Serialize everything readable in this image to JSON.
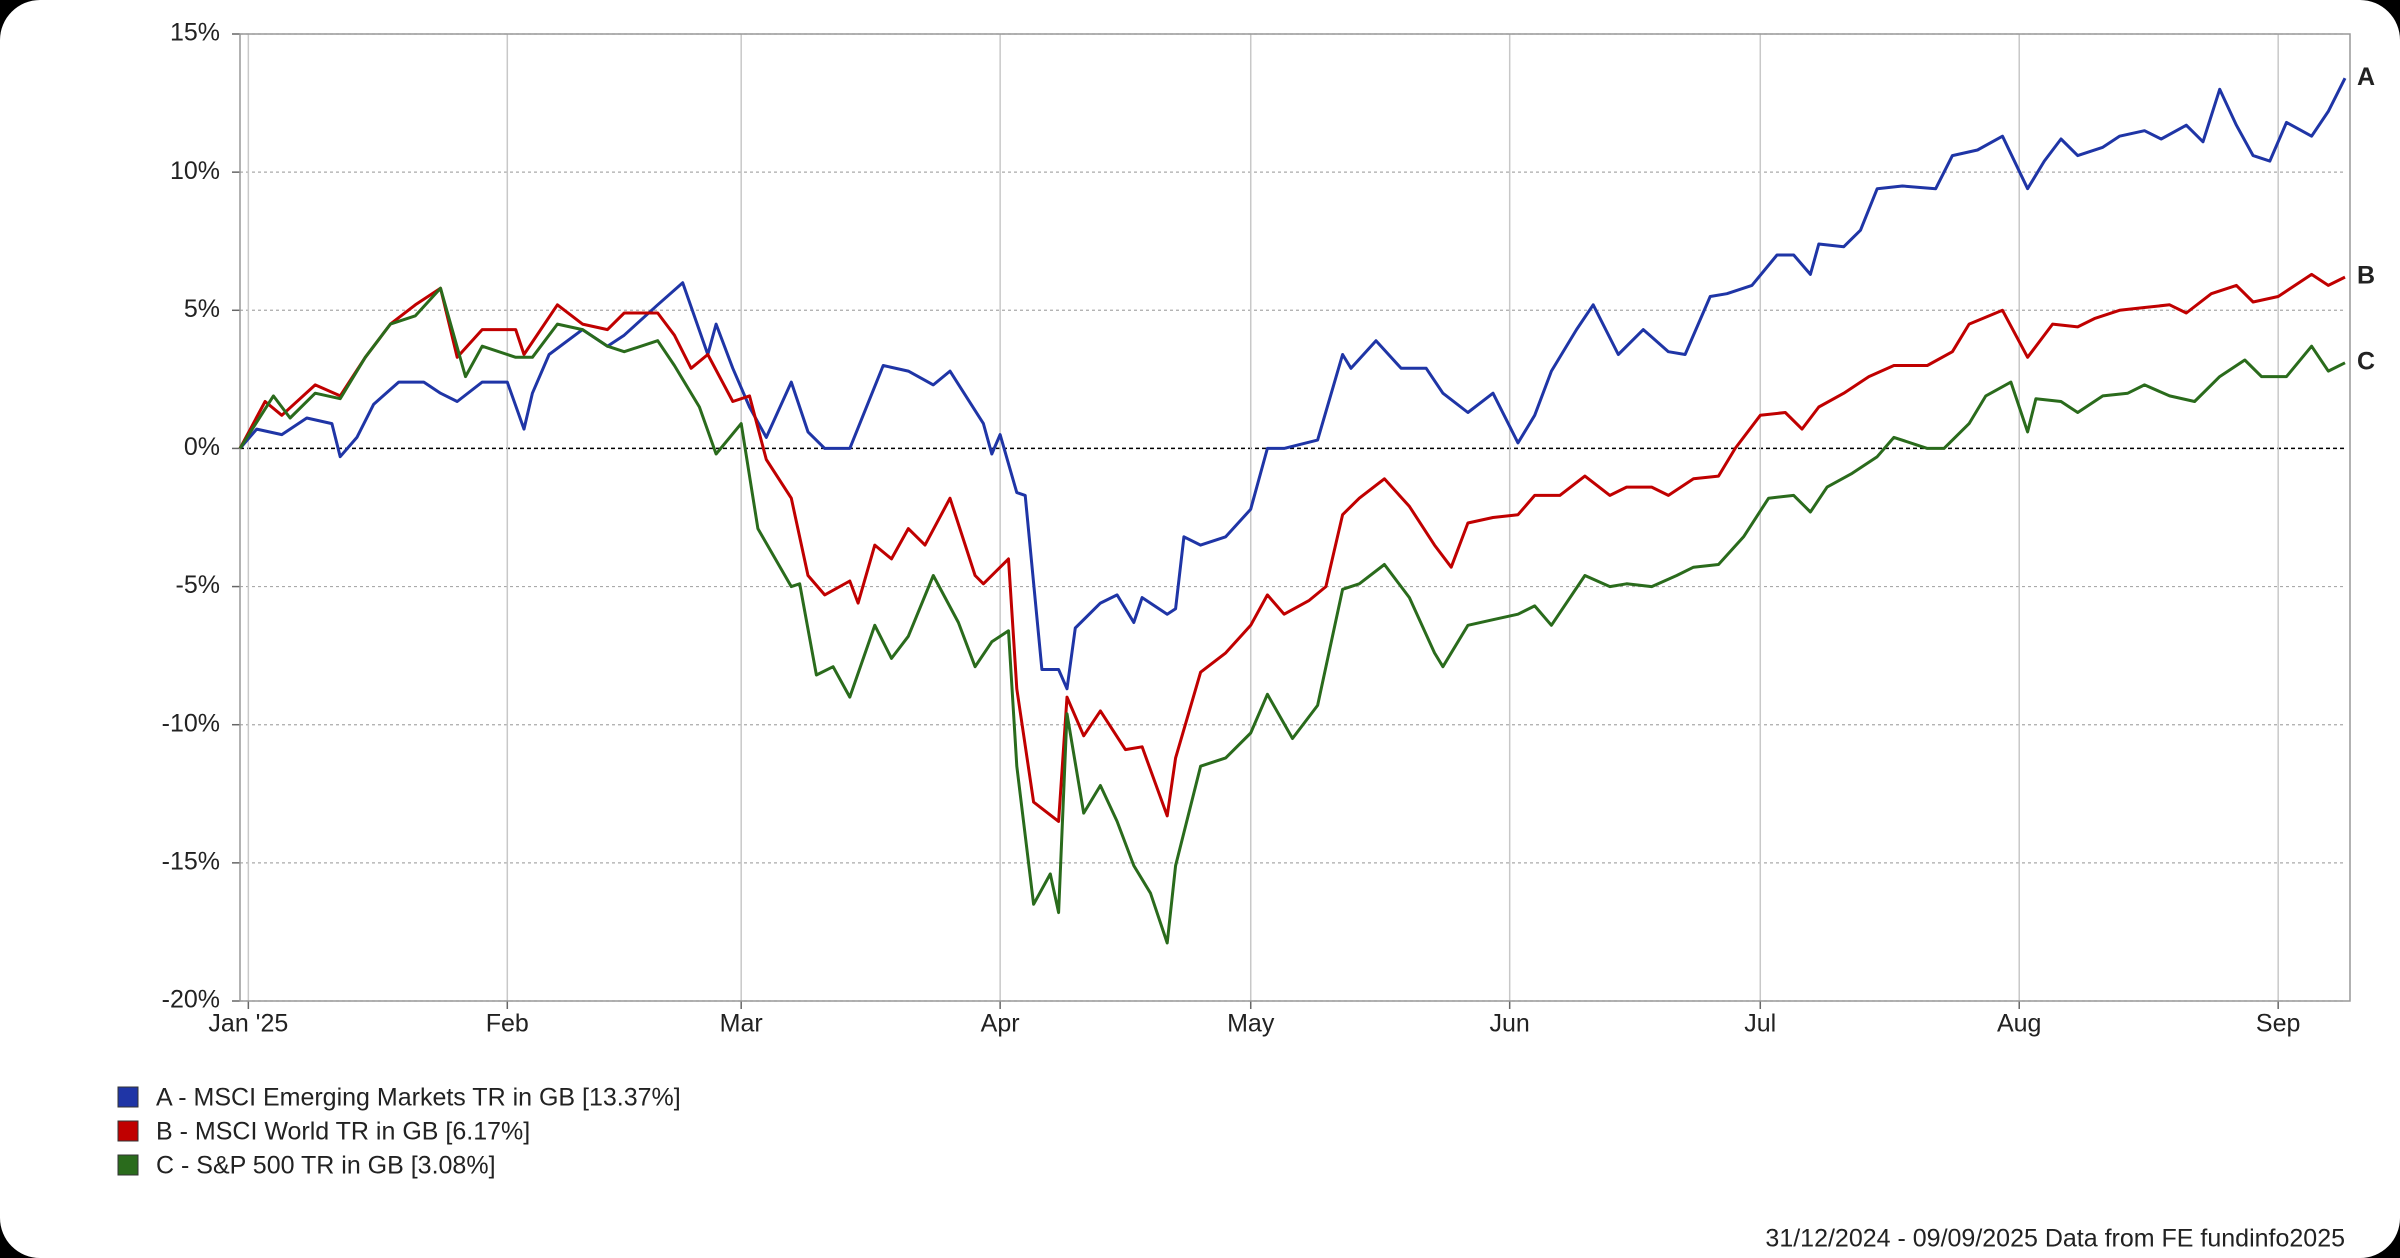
{
  "chart_data": {
    "type": "line",
    "xlim": [
      0,
      252
    ],
    "xticks": [
      {
        "value": 1,
        "label": "Jan '25"
      },
      {
        "value": 32,
        "label": "Feb"
      },
      {
        "value": 60,
        "label": "Mar"
      },
      {
        "value": 91,
        "label": "Apr"
      },
      {
        "value": 121,
        "label": "May"
      },
      {
        "value": 152,
        "label": "Jun"
      },
      {
        "value": 182,
        "label": "Jul"
      },
      {
        "value": 213,
        "label": "Aug"
      },
      {
        "value": 244,
        "label": "Sep"
      }
    ],
    "ylim": [
      -20,
      15
    ],
    "yticks": [
      {
        "value": -20,
        "label": "-20%"
      },
      {
        "value": -15,
        "label": "-15%"
      },
      {
        "value": -10,
        "label": "-10%"
      },
      {
        "value": -5,
        "label": "-5%"
      },
      {
        "value": 0,
        "label": "0%"
      },
      {
        "value": 5,
        "label": "5%"
      },
      {
        "value": 10,
        "label": "10%"
      },
      {
        "value": 15,
        "label": "15%"
      }
    ],
    "grid": true,
    "legend": "bottom-left",
    "footnote": "31/12/2024 - 09/09/2025 Data from FE fundinfo2025",
    "series": [
      {
        "name": "A - MSCI Emerging Markets TR in GB [13.37%]",
        "end_label": "A",
        "color": "#1f35a6",
        "x": [
          0,
          2,
          5,
          8,
          11,
          12,
          14,
          16,
          19,
          22,
          24,
          26,
          29,
          32,
          34,
          35,
          37,
          41,
          44,
          46,
          50,
          53,
          56,
          57,
          59,
          61,
          63,
          66,
          68,
          70,
          73,
          77,
          80,
          83,
          85,
          89,
          90,
          91,
          93,
          94,
          96,
          98,
          99,
          100,
          103,
          105,
          107,
          108,
          111,
          112,
          113,
          115,
          118,
          121,
          123,
          125,
          129,
          132,
          133,
          136,
          139,
          142,
          144,
          147,
          150,
          153,
          155,
          157,
          160,
          162,
          165,
          168,
          171,
          173,
          176,
          178,
          181,
          184,
          186,
          188,
          189,
          192,
          194,
          196,
          199,
          203,
          205,
          208,
          211,
          214,
          216,
          218,
          220,
          223,
          225,
          228,
          230,
          233,
          235,
          237,
          239,
          241,
          243,
          245,
          248,
          250,
          252
        ],
        "values": [
          0,
          0.7,
          0.5,
          1.1,
          0.9,
          -0.3,
          0.4,
          1.6,
          2.4,
          2.4,
          2.0,
          1.7,
          2.4,
          2.4,
          0.7,
          2.0,
          3.4,
          4.3,
          3.7,
          4.1,
          5.2,
          6.0,
          3.4,
          4.5,
          2.9,
          1.5,
          0.4,
          2.4,
          0.6,
          0,
          0,
          3.0,
          2.8,
          2.3,
          2.8,
          0.9,
          -0.2,
          0.5,
          -1.6,
          -1.7,
          -8.0,
          -8.0,
          -8.7,
          -6.5,
          -5.6,
          -5.3,
          -6.3,
          -5.4,
          -6.0,
          -5.8,
          -3.2,
          -3.5,
          -3.2,
          -2.2,
          0,
          0,
          0.3,
          3.4,
          2.9,
          3.9,
          2.9,
          2.9,
          2.0,
          1.3,
          2.0,
          0.2,
          1.2,
          2.8,
          4.3,
          5.2,
          3.4,
          4.3,
          3.5,
          3.4,
          5.5,
          5.6,
          5.9,
          7.0,
          7.0,
          6.3,
          7.4,
          7.3,
          7.9,
          9.4,
          9.5,
          9.4,
          10.6,
          10.8,
          11.3,
          9.4,
          10.4,
          11.2,
          10.6,
          10.9,
          11.3,
          11.5,
          11.2,
          11.7,
          11.1,
          13.0,
          11.7,
          10.6,
          10.4,
          11.8,
          11.3,
          12.2,
          13.4
        ]
      },
      {
        "name": "B - MSCI World TR in GB [6.17%]",
        "end_label": "B",
        "color": "#c00000",
        "x": [
          0,
          3,
          5,
          9,
          12,
          15,
          18,
          21,
          24,
          26,
          29,
          33,
          34,
          38,
          41,
          44,
          46,
          50,
          52,
          54,
          56,
          59,
          61,
          63,
          66,
          68,
          70,
          73,
          74,
          76,
          78,
          80,
          82,
          85,
          88,
          89,
          92,
          93,
          95,
          98,
          99,
          101,
          103,
          106,
          108,
          111,
          112,
          115,
          118,
          121,
          123,
          125,
          128,
          130,
          132,
          134,
          137,
          140,
          143,
          145,
          147,
          150,
          153,
          155,
          158,
          161,
          164,
          166,
          169,
          171,
          174,
          177,
          179,
          182,
          185,
          187,
          189,
          192,
          195,
          198,
          202,
          205,
          207,
          211,
          214,
          217,
          220,
          222,
          225,
          228,
          231,
          233,
          236,
          239,
          241,
          244,
          248,
          250,
          252
        ],
        "values": [
          0,
          1.7,
          1.2,
          2.3,
          1.9,
          3.3,
          4.5,
          5.2,
          5.8,
          3.3,
          4.3,
          4.3,
          3.4,
          5.2,
          4.5,
          4.3,
          4.9,
          4.9,
          4.1,
          2.9,
          3.4,
          1.7,
          1.9,
          -0.4,
          -1.8,
          -4.6,
          -5.3,
          -4.8,
          -5.6,
          -3.5,
          -4.0,
          -2.9,
          -3.5,
          -1.8,
          -4.6,
          -4.9,
          -4.0,
          -8.7,
          -12.8,
          -13.5,
          -9.0,
          -10.4,
          -9.5,
          -10.9,
          -10.8,
          -13.3,
          -11.2,
          -8.1,
          -7.4,
          -6.4,
          -5.3,
          -6.0,
          -5.5,
          -5.0,
          -2.4,
          -1.8,
          -1.1,
          -2.1,
          -3.5,
          -4.3,
          -2.7,
          -2.5,
          -2.4,
          -1.7,
          -1.7,
          -1.0,
          -1.7,
          -1.4,
          -1.4,
          -1.7,
          -1.1,
          -1.0,
          0,
          1.2,
          1.3,
          0.7,
          1.5,
          2.0,
          2.6,
          3.0,
          3.0,
          3.5,
          4.5,
          5.0,
          3.3,
          4.5,
          4.4,
          4.7,
          5.0,
          5.1,
          5.2,
          4.9,
          5.6,
          5.9,
          5.3,
          5.5,
          6.3,
          5.9,
          6.2
        ]
      },
      {
        "name": "C - S&P 500 TR in GB [3.08%]",
        "end_label": "C",
        "color": "#2a6b1c",
        "x": [
          0,
          4,
          6,
          9,
          12,
          15,
          18,
          21,
          24,
          27,
          29,
          33,
          35,
          38,
          41,
          44,
          46,
          50,
          52,
          55,
          57,
          60,
          62,
          66,
          67,
          69,
          71,
          73,
          76,
          78,
          80,
          83,
          86,
          88,
          90,
          92,
          93,
          95,
          97,
          98,
          99,
          101,
          103,
          105,
          107,
          109,
          111,
          112,
          115,
          118,
          121,
          123,
          126,
          129,
          132,
          134,
          137,
          140,
          143,
          144,
          147,
          150,
          153,
          155,
          157,
          161,
          164,
          166,
          169,
          172,
          174,
          177,
          180,
          183,
          186,
          188,
          190,
          193,
          196,
          198,
          202,
          204,
          207,
          209,
          212,
          214,
          215,
          218,
          220,
          223,
          226,
          228,
          231,
          234,
          237,
          240,
          242,
          245,
          248,
          250,
          252
        ],
        "values": [
          0,
          1.9,
          1.1,
          2.0,
          1.8,
          3.3,
          4.5,
          4.8,
          5.8,
          2.6,
          3.7,
          3.3,
          3.3,
          4.5,
          4.3,
          3.7,
          3.5,
          3.9,
          3.0,
          1.5,
          -0.2,
          0.9,
          -2.9,
          -5.0,
          -4.9,
          -8.2,
          -7.9,
          -9.0,
          -6.4,
          -7.6,
          -6.8,
          -4.6,
          -6.3,
          -7.9,
          -7.0,
          -6.6,
          -11.5,
          -16.5,
          -15.4,
          -16.8,
          -9.6,
          -13.2,
          -12.2,
          -13.5,
          -15.1,
          -16.1,
          -17.9,
          -15.1,
          -11.5,
          -11.2,
          -10.3,
          -8.9,
          -10.5,
          -9.3,
          -5.1,
          -4.9,
          -4.2,
          -5.4,
          -7.4,
          -7.9,
          -6.4,
          -6.2,
          -6.0,
          -5.7,
          -6.4,
          -4.6,
          -5.0,
          -4.9,
          -5.0,
          -4.6,
          -4.3,
          -4.2,
          -3.2,
          -1.8,
          -1.7,
          -2.3,
          -1.4,
          -0.9,
          -0.3,
          0.4,
          0,
          0,
          0.9,
          1.9,
          2.4,
          0.6,
          1.8,
          1.7,
          1.3,
          1.9,
          2.0,
          2.3,
          1.9,
          1.7,
          2.6,
          3.2,
          2.6,
          2.6,
          3.7,
          2.8,
          3.1
        ]
      }
    ]
  }
}
